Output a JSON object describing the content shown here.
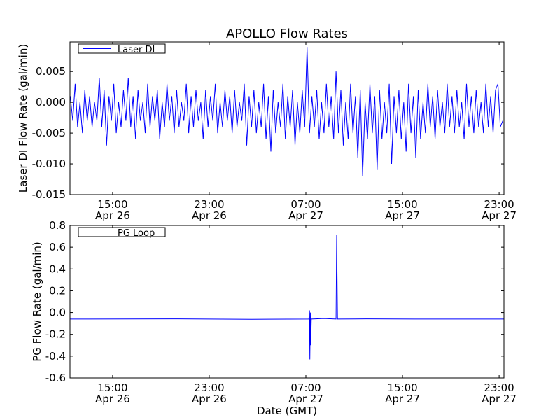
{
  "chart_data": [
    {
      "type": "line",
      "title": "APOLLO Flow Rates",
      "xlabel": "",
      "ylabel": "Laser DI Flow Rate (gal/min)",
      "x_units": "hours since Apr 26 00:00 GMT",
      "xlim": [
        11.47,
        47.4
      ],
      "ylim": [
        -0.015,
        0.0098
      ],
      "yticks": [
        0.005,
        0.0,
        -0.005,
        -0.01,
        -0.015
      ],
      "ytick_labels": [
        "0.005",
        "0.000",
        "-0.005",
        "-0.010",
        "-0.015"
      ],
      "xticks": [
        15,
        23,
        31,
        39,
        47
      ],
      "xtick_labels": [
        [
          "15:00",
          "Apr 26"
        ],
        [
          "23:00",
          "Apr 26"
        ],
        [
          "07:00",
          "Apr 27"
        ],
        [
          "15:00",
          "Apr 27"
        ],
        [
          "23:00",
          "Apr 27"
        ]
      ],
      "legend": {
        "placement": "top-left",
        "entries": [
          "Laser DI"
        ]
      },
      "series": [
        {
          "name": "Laser DI",
          "color": "#0000ff",
          "x_start": 11.5,
          "x_step": 0.2,
          "values": [
            0.001,
            -0.003,
            0.003,
            -0.004,
            0.0,
            -0.005,
            0.002,
            -0.003,
            0.001,
            -0.004,
            0.0,
            -0.003,
            0.004,
            -0.004,
            0.002,
            -0.007,
            0.001,
            -0.003,
            0.003,
            -0.005,
            0.0,
            -0.004,
            0.002,
            -0.003,
            0.004,
            -0.004,
            0.001,
            -0.006,
            0.002,
            -0.003,
            0.0,
            -0.005,
            0.003,
            -0.004,
            0.001,
            -0.003,
            0.002,
            -0.006,
            0.0,
            -0.004,
            0.003,
            -0.003,
            0.001,
            -0.005,
            0.002,
            -0.004,
            0.0,
            -0.003,
            0.003,
            -0.005,
            0.001,
            -0.004,
            0.002,
            -0.003,
            0.0,
            -0.006,
            0.002,
            -0.004,
            0.001,
            -0.003,
            0.003,
            -0.005,
            0.0,
            -0.004,
            0.002,
            -0.003,
            0.001,
            -0.005,
            0.002,
            -0.004,
            0.0,
            -0.003,
            0.003,
            -0.007,
            0.001,
            -0.004,
            0.002,
            -0.005,
            0.0,
            -0.004,
            0.003,
            -0.006,
            0.001,
            -0.008,
            0.002,
            -0.005,
            0.0,
            -0.004,
            0.003,
            -0.006,
            0.001,
            -0.004,
            0.002,
            -0.007,
            0.0,
            -0.005,
            0.002,
            -0.004,
            0.009,
            -0.005,
            0.001,
            -0.004,
            0.002,
            -0.006,
            0.0,
            -0.005,
            0.003,
            -0.004,
            0.001,
            -0.006,
            0.005,
            -0.005,
            0.002,
            -0.007,
            0.0,
            -0.006,
            0.003,
            -0.005,
            0.001,
            -0.009,
            0.002,
            -0.012,
            0.0,
            -0.006,
            0.003,
            -0.005,
            0.001,
            -0.011,
            0.002,
            -0.006,
            0.0,
            -0.005,
            0.003,
            -0.01,
            0.001,
            -0.005,
            0.002,
            -0.006,
            0.0,
            -0.008,
            0.003,
            -0.005,
            0.001,
            -0.009,
            0.002,
            -0.006,
            0.0,
            -0.005,
            0.003,
            -0.004,
            0.001,
            -0.006,
            0.002,
            -0.004,
            0.0,
            -0.005,
            0.003,
            -0.004,
            0.001,
            -0.005,
            0.002,
            -0.004,
            0.0,
            -0.006,
            0.003,
            -0.004,
            0.001,
            -0.005,
            0.002,
            -0.004,
            0.0,
            -0.005,
            0.003,
            -0.004,
            0.001,
            -0.005,
            0.002,
            0.003,
            -0.004,
            -0.003
          ]
        }
      ]
    },
    {
      "type": "line",
      "title": "",
      "xlabel": "Date (GMT)",
      "ylabel": "PG Flow Rate (gal/min)",
      "x_units": "hours since Apr 26 00:00 GMT",
      "xlim": [
        11.47,
        47.4
      ],
      "ylim": [
        -0.6,
        0.8
      ],
      "yticks": [
        0.8,
        0.6,
        0.4,
        0.2,
        0.0,
        -0.2,
        -0.4,
        -0.6
      ],
      "ytick_labels": [
        "0.8",
        "0.6",
        "0.4",
        "0.2",
        "0.0",
        "-0.2",
        "-0.4",
        "-0.6"
      ],
      "xticks": [
        15,
        23,
        31,
        39,
        47
      ],
      "xtick_labels": [
        [
          "15:00",
          "Apr 26"
        ],
        [
          "23:00",
          "Apr 26"
        ],
        [
          "07:00",
          "Apr 27"
        ],
        [
          "15:00",
          "Apr 27"
        ],
        [
          "23:00",
          "Apr 27"
        ]
      ],
      "legend": {
        "placement": "top-left",
        "entries": [
          "PG Loop"
        ]
      },
      "series": [
        {
          "name": "PG Loop",
          "color": "#0000ff",
          "points": [
            [
              11.47,
              -0.06
            ],
            [
              20.0,
              -0.058
            ],
            [
              26.5,
              -0.062
            ],
            [
              31.25,
              -0.06
            ],
            [
              31.3,
              0.02
            ],
            [
              31.33,
              -0.43
            ],
            [
              31.37,
              0.0
            ],
            [
              31.4,
              -0.3
            ],
            [
              31.45,
              -0.06
            ],
            [
              32.5,
              -0.055
            ],
            [
              33.5,
              -0.06
            ],
            [
              33.55,
              0.71
            ],
            [
              33.62,
              -0.06
            ],
            [
              36.0,
              -0.058
            ],
            [
              40.0,
              -0.06
            ],
            [
              47.4,
              -0.06
            ]
          ]
        }
      ]
    }
  ]
}
